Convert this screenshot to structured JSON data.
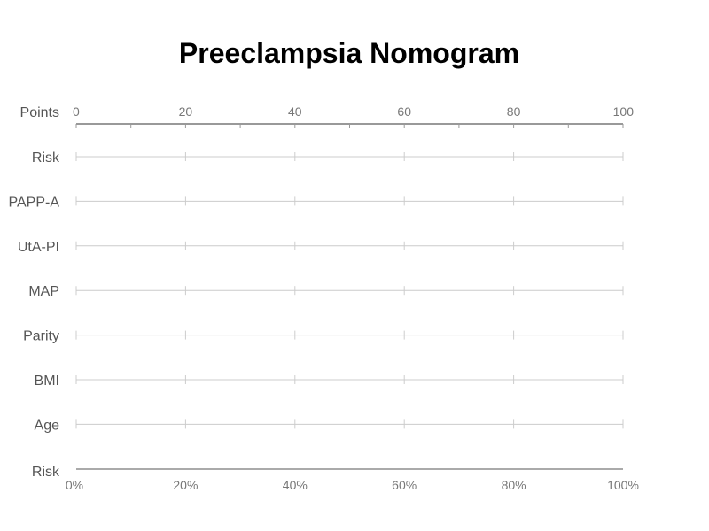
{
  "chart_data": {
    "type": "nomogram",
    "title": "Preeclampsia Nomogram",
    "points_axis": {
      "label": "Points",
      "range": [
        0,
        100
      ],
      "tick_labels": [
        "0",
        "20",
        "40",
        "60",
        "80",
        "100"
      ],
      "major_ticks": [
        0,
        20,
        40,
        60,
        80,
        100
      ],
      "minor_ticks": [
        10,
        30,
        50,
        70,
        90
      ]
    },
    "variables": [
      {
        "name": "Risk"
      },
      {
        "name": "PAPP-A"
      },
      {
        "name": "UtA-PI"
      },
      {
        "name": "MAP"
      },
      {
        "name": "Parity"
      },
      {
        "name": "BMI"
      },
      {
        "name": "Age"
      }
    ],
    "row_ticks": [
      0,
      20,
      40,
      60,
      80,
      100
    ],
    "risk_axis": {
      "label": "Risk",
      "range": [
        0,
        100
      ],
      "tick_labels": [
        "0%",
        "20%",
        "40%",
        "60%",
        "80%",
        "100%"
      ]
    },
    "grid": false
  }
}
